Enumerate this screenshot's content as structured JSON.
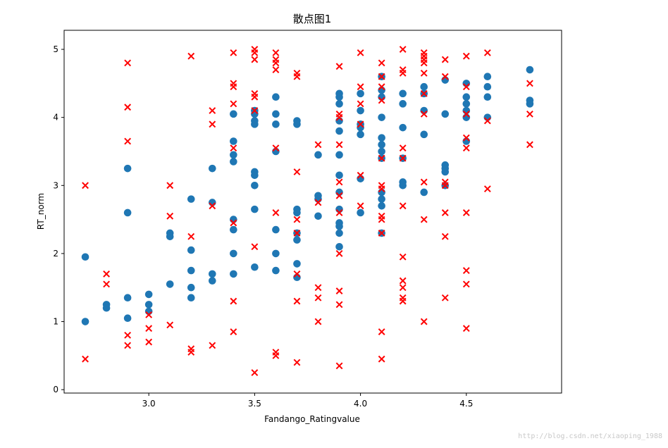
{
  "chart_data": {
    "type": "scatter",
    "title": "散点图1",
    "xlabel": "Fandango_Ratingvalue",
    "ylabel": "RT_norm",
    "xlim": [
      2.6,
      4.95
    ],
    "ylim": [
      -0.05,
      5.28
    ],
    "xticks": [
      "3.0",
      "3.5",
      "4.0",
      "4.5"
    ],
    "yticks": [
      "0",
      "1",
      "2",
      "3",
      "4",
      "5"
    ],
    "grid": false,
    "legend": "none",
    "series": [
      {
        "marker": "circle",
        "color": "#1f77b4",
        "points": [
          [
            2.7,
            1.95
          ],
          [
            2.7,
            1.0
          ],
          [
            2.8,
            1.25
          ],
          [
            2.8,
            1.2
          ],
          [
            2.9,
            3.25
          ],
          [
            2.9,
            2.6
          ],
          [
            2.9,
            1.35
          ],
          [
            2.9,
            1.05
          ],
          [
            3.0,
            1.4
          ],
          [
            3.0,
            1.25
          ],
          [
            3.0,
            1.15
          ],
          [
            3.1,
            2.3
          ],
          [
            3.1,
            2.25
          ],
          [
            3.1,
            1.55
          ],
          [
            3.2,
            2.8
          ],
          [
            3.2,
            2.05
          ],
          [
            3.2,
            1.75
          ],
          [
            3.2,
            1.5
          ],
          [
            3.2,
            1.35
          ],
          [
            3.3,
            3.25
          ],
          [
            3.3,
            2.75
          ],
          [
            3.3,
            1.7
          ],
          [
            3.3,
            1.6
          ],
          [
            3.4,
            4.05
          ],
          [
            3.4,
            3.65
          ],
          [
            3.4,
            3.45
          ],
          [
            3.4,
            3.35
          ],
          [
            3.4,
            2.5
          ],
          [
            3.4,
            2.35
          ],
          [
            3.4,
            2.0
          ],
          [
            3.4,
            1.7
          ],
          [
            3.5,
            4.1
          ],
          [
            3.5,
            4.05
          ],
          [
            3.5,
            3.95
          ],
          [
            3.5,
            3.9
          ],
          [
            3.5,
            3.2
          ],
          [
            3.5,
            3.15
          ],
          [
            3.5,
            3.0
          ],
          [
            3.5,
            2.65
          ],
          [
            3.5,
            1.8
          ],
          [
            3.6,
            4.3
          ],
          [
            3.6,
            4.05
          ],
          [
            3.6,
            3.9
          ],
          [
            3.6,
            3.5
          ],
          [
            3.6,
            2.35
          ],
          [
            3.6,
            2.0
          ],
          [
            3.6,
            1.75
          ],
          [
            3.7,
            3.95
          ],
          [
            3.7,
            3.9
          ],
          [
            3.7,
            2.65
          ],
          [
            3.7,
            2.6
          ],
          [
            3.7,
            2.3
          ],
          [
            3.7,
            2.2
          ],
          [
            3.7,
            1.85
          ],
          [
            3.7,
            1.65
          ],
          [
            3.8,
            3.45
          ],
          [
            3.8,
            2.85
          ],
          [
            3.8,
            2.8
          ],
          [
            3.8,
            2.55
          ],
          [
            3.9,
            4.35
          ],
          [
            3.9,
            4.3
          ],
          [
            3.9,
            4.2
          ],
          [
            3.9,
            3.95
          ],
          [
            3.9,
            3.8
          ],
          [
            3.9,
            3.45
          ],
          [
            3.9,
            3.15
          ],
          [
            3.9,
            2.9
          ],
          [
            3.9,
            2.65
          ],
          [
            3.9,
            2.45
          ],
          [
            3.9,
            2.4
          ],
          [
            3.9,
            2.3
          ],
          [
            3.9,
            2.1
          ],
          [
            4.0,
            4.35
          ],
          [
            4.0,
            4.1
          ],
          [
            4.0,
            3.9
          ],
          [
            4.0,
            3.85
          ],
          [
            4.0,
            3.75
          ],
          [
            4.0,
            3.1
          ],
          [
            4.0,
            2.6
          ],
          [
            4.1,
            4.6
          ],
          [
            4.1,
            4.4
          ],
          [
            4.1,
            4.3
          ],
          [
            4.1,
            4.0
          ],
          [
            4.1,
            3.7
          ],
          [
            4.1,
            3.6
          ],
          [
            4.1,
            3.5
          ],
          [
            4.1,
            3.4
          ],
          [
            4.1,
            2.9
          ],
          [
            4.1,
            2.8
          ],
          [
            4.1,
            2.7
          ],
          [
            4.1,
            2.3
          ],
          [
            4.2,
            4.35
          ],
          [
            4.2,
            4.2
          ],
          [
            4.2,
            3.85
          ],
          [
            4.2,
            3.4
          ],
          [
            4.2,
            3.05
          ],
          [
            4.2,
            3.0
          ],
          [
            4.3,
            4.45
          ],
          [
            4.3,
            4.35
          ],
          [
            4.3,
            4.1
          ],
          [
            4.3,
            3.75
          ],
          [
            4.3,
            2.9
          ],
          [
            4.4,
            4.55
          ],
          [
            4.4,
            4.05
          ],
          [
            4.4,
            3.3
          ],
          [
            4.4,
            3.25
          ],
          [
            4.4,
            3.2
          ],
          [
            4.4,
            3.0
          ],
          [
            4.5,
            4.5
          ],
          [
            4.5,
            4.3
          ],
          [
            4.5,
            4.2
          ],
          [
            4.5,
            4.1
          ],
          [
            4.5,
            4.0
          ],
          [
            4.5,
            3.65
          ],
          [
            4.6,
            4.6
          ],
          [
            4.6,
            4.45
          ],
          [
            4.6,
            4.3
          ],
          [
            4.6,
            4.0
          ],
          [
            4.8,
            4.7
          ],
          [
            4.8,
            4.25
          ],
          [
            4.8,
            4.2
          ]
        ]
      },
      {
        "marker": "x",
        "color": "#ff0000",
        "points": [
          [
            2.7,
            3.0
          ],
          [
            2.7,
            0.45
          ],
          [
            2.8,
            1.7
          ],
          [
            2.8,
            1.55
          ],
          [
            2.9,
            4.8
          ],
          [
            2.9,
            4.15
          ],
          [
            2.9,
            3.65
          ],
          [
            2.9,
            0.8
          ],
          [
            2.9,
            0.65
          ],
          [
            3.0,
            1.1
          ],
          [
            3.0,
            0.9
          ],
          [
            3.0,
            0.7
          ],
          [
            3.1,
            3.0
          ],
          [
            3.1,
            2.55
          ],
          [
            3.1,
            0.95
          ],
          [
            3.2,
            4.9
          ],
          [
            3.2,
            2.25
          ],
          [
            3.2,
            0.6
          ],
          [
            3.2,
            0.55
          ],
          [
            3.3,
            4.1
          ],
          [
            3.3,
            3.9
          ],
          [
            3.3,
            2.7
          ],
          [
            3.3,
            0.65
          ],
          [
            3.4,
            4.95
          ],
          [
            3.4,
            4.5
          ],
          [
            3.4,
            4.45
          ],
          [
            3.4,
            4.2
          ],
          [
            3.4,
            3.55
          ],
          [
            3.4,
            2.45
          ],
          [
            3.4,
            1.3
          ],
          [
            3.4,
            0.85
          ],
          [
            3.5,
            5.0
          ],
          [
            3.5,
            4.95
          ],
          [
            3.5,
            4.85
          ],
          [
            3.5,
            4.35
          ],
          [
            3.5,
            4.3
          ],
          [
            3.5,
            4.1
          ],
          [
            3.5,
            2.1
          ],
          [
            3.5,
            0.25
          ],
          [
            3.6,
            4.95
          ],
          [
            3.6,
            4.85
          ],
          [
            3.6,
            4.8
          ],
          [
            3.6,
            4.7
          ],
          [
            3.6,
            3.55
          ],
          [
            3.6,
            2.6
          ],
          [
            3.6,
            0.55
          ],
          [
            3.6,
            0.5
          ],
          [
            3.7,
            4.65
          ],
          [
            3.7,
            4.6
          ],
          [
            3.7,
            3.2
          ],
          [
            3.7,
            2.5
          ],
          [
            3.7,
            2.3
          ],
          [
            3.7,
            1.7
          ],
          [
            3.7,
            1.3
          ],
          [
            3.7,
            0.4
          ],
          [
            3.8,
            3.6
          ],
          [
            3.8,
            2.75
          ],
          [
            3.8,
            1.5
          ],
          [
            3.8,
            1.35
          ],
          [
            3.8,
            1.0
          ],
          [
            3.9,
            4.75
          ],
          [
            3.9,
            4.05
          ],
          [
            3.9,
            4.0
          ],
          [
            3.9,
            3.6
          ],
          [
            3.9,
            3.05
          ],
          [
            3.9,
            2.85
          ],
          [
            3.9,
            2.6
          ],
          [
            3.9,
            2.0
          ],
          [
            3.9,
            1.45
          ],
          [
            3.9,
            1.25
          ],
          [
            3.9,
            0.35
          ],
          [
            4.0,
            4.95
          ],
          [
            4.0,
            4.45
          ],
          [
            4.0,
            4.2
          ],
          [
            4.0,
            3.9
          ],
          [
            4.0,
            3.15
          ],
          [
            4.0,
            2.7
          ],
          [
            4.1,
            4.8
          ],
          [
            4.1,
            4.6
          ],
          [
            4.1,
            4.45
          ],
          [
            4.1,
            4.25
          ],
          [
            4.1,
            3.4
          ],
          [
            4.1,
            3.0
          ],
          [
            4.1,
            2.95
          ],
          [
            4.1,
            2.55
          ],
          [
            4.1,
            2.5
          ],
          [
            4.1,
            2.3
          ],
          [
            4.1,
            0.85
          ],
          [
            4.1,
            0.45
          ],
          [
            4.2,
            5.0
          ],
          [
            4.2,
            4.7
          ],
          [
            4.2,
            4.65
          ],
          [
            4.2,
            3.55
          ],
          [
            4.2,
            3.4
          ],
          [
            4.2,
            2.7
          ],
          [
            4.2,
            1.95
          ],
          [
            4.2,
            1.6
          ],
          [
            4.2,
            1.5
          ],
          [
            4.2,
            1.35
          ],
          [
            4.2,
            1.3
          ],
          [
            4.3,
            4.95
          ],
          [
            4.3,
            4.9
          ],
          [
            4.3,
            4.85
          ],
          [
            4.3,
            4.8
          ],
          [
            4.3,
            4.65
          ],
          [
            4.3,
            4.35
          ],
          [
            4.3,
            4.05
          ],
          [
            4.3,
            3.05
          ],
          [
            4.3,
            2.5
          ],
          [
            4.3,
            1.0
          ],
          [
            4.4,
            4.85
          ],
          [
            4.4,
            4.6
          ],
          [
            4.4,
            3.05
          ],
          [
            4.4,
            3.0
          ],
          [
            4.4,
            2.6
          ],
          [
            4.4,
            2.25
          ],
          [
            4.4,
            1.35
          ],
          [
            4.5,
            4.9
          ],
          [
            4.5,
            4.45
          ],
          [
            4.5,
            4.05
          ],
          [
            4.5,
            3.7
          ],
          [
            4.5,
            3.55
          ],
          [
            4.5,
            2.6
          ],
          [
            4.5,
            1.75
          ],
          [
            4.5,
            1.55
          ],
          [
            4.5,
            0.9
          ],
          [
            4.6,
            4.95
          ],
          [
            4.6,
            3.95
          ],
          [
            4.6,
            2.95
          ],
          [
            4.8,
            4.5
          ],
          [
            4.8,
            4.05
          ],
          [
            4.8,
            3.6
          ]
        ]
      }
    ]
  },
  "watermark": "http://blog.csdn.net/xiaoping_1988"
}
